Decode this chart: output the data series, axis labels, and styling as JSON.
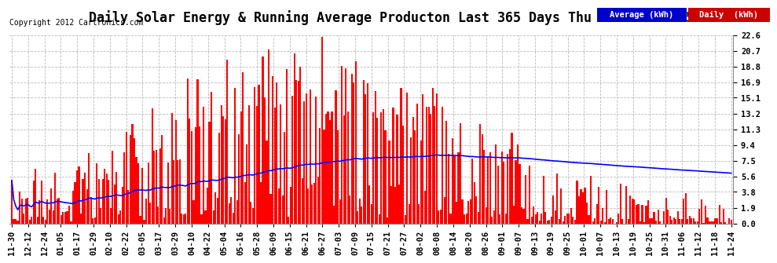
{
  "title": "Daily Solar Energy & Running Average Producton Last 365 Days Thu Nov 29 07:05",
  "copyright": "Copyright 2012 Cartronics.com",
  "ylabel_right_values": [
    22.6,
    20.7,
    18.8,
    16.9,
    15.1,
    13.2,
    11.3,
    9.4,
    7.5,
    5.6,
    3.8,
    1.9,
    0.0
  ],
  "ymax": 22.6,
  "ymin": 0.0,
  "bar_color": "#ff0000",
  "avg_line_color": "#0000ff",
  "background_color": "#ffffff",
  "plot_bg_color": "#ffffff",
  "grid_color": "#bbbbbb",
  "legend_avg_bg": "#0000cc",
  "legend_daily_bg": "#cc0000",
  "legend_text_color": "#ffffff",
  "title_fontsize": 12,
  "tick_fontsize": 7.5,
  "num_bars": 365,
  "x_tick_labels": [
    "11-30",
    "12-12",
    "12-24",
    "01-05",
    "01-17",
    "01-29",
    "02-10",
    "02-22",
    "03-05",
    "03-17",
    "03-29",
    "04-10",
    "04-22",
    "05-04",
    "05-16",
    "05-28",
    "06-09",
    "06-15",
    "06-21",
    "06-27",
    "07-03",
    "07-09",
    "07-15",
    "07-21",
    "07-27",
    "08-02",
    "08-08",
    "08-14",
    "08-20",
    "08-26",
    "09-01",
    "09-07",
    "09-13",
    "09-19",
    "09-25",
    "10-01",
    "10-07",
    "10-13",
    "10-19",
    "10-25",
    "10-31",
    "11-06",
    "11-12",
    "11-18",
    "11-24"
  ]
}
